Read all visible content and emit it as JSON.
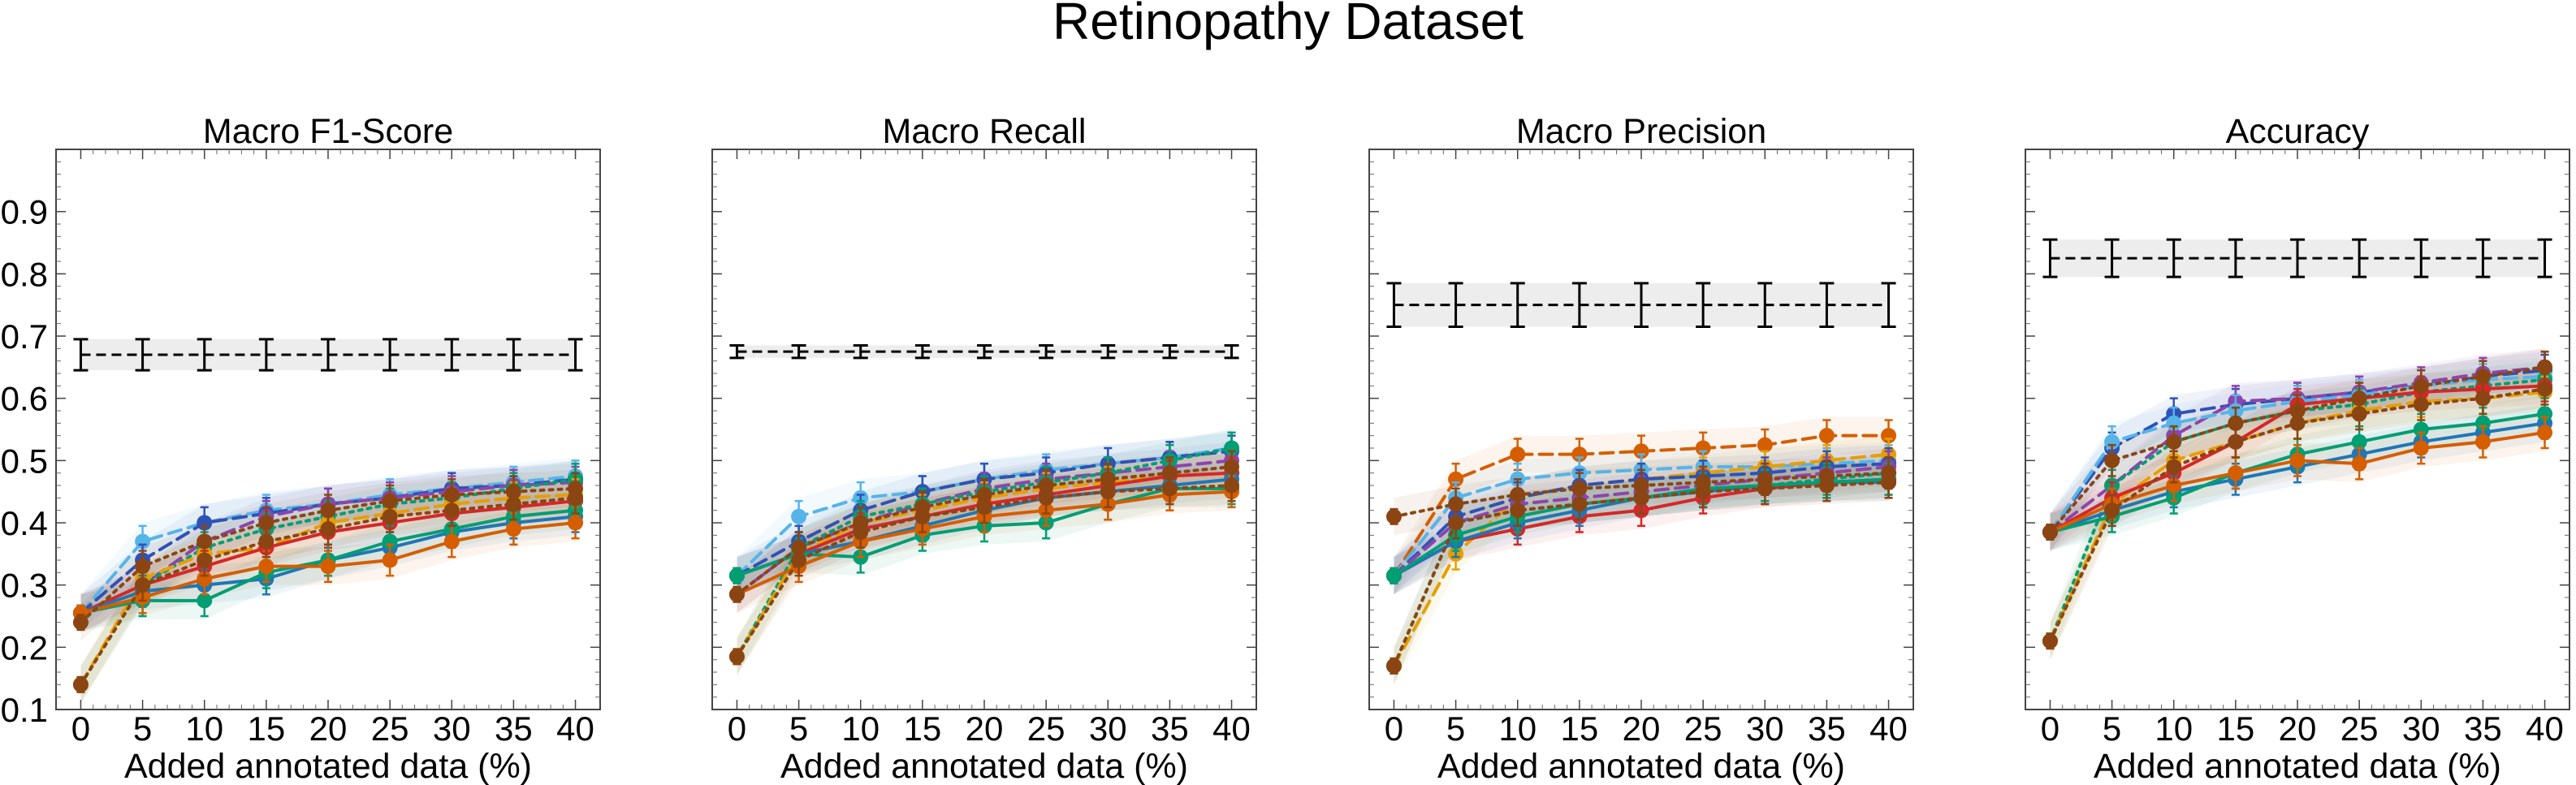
{
  "title": "Retinopathy Dataset",
  "chart_data": [
    {
      "type": "line",
      "title": "Macro F1-Score",
      "xlabel": "Added annotated data (%)",
      "x": [
        0,
        5,
        10,
        15,
        20,
        25,
        30,
        35,
        40
      ],
      "ylim": [
        0.1,
        1.0
      ],
      "yticks": [
        0.1,
        0.2,
        0.3,
        0.4,
        0.5,
        0.6,
        0.7,
        0.8,
        0.9
      ],
      "reference": {
        "value": 0.67,
        "error": 0.025
      },
      "series": [
        {
          "color": "#56b4e9",
          "style": "dashed",
          "values": [
            0.255,
            0.37,
            0.4,
            0.42,
            0.43,
            0.445,
            0.455,
            0.465,
            0.475
          ]
        },
        {
          "color": "#2f52b5",
          "style": "dashed",
          "values": [
            0.255,
            0.34,
            0.4,
            0.415,
            0.43,
            0.44,
            0.455,
            0.46,
            0.47
          ]
        },
        {
          "color": "#8e44ad",
          "style": "dashed",
          "values": [
            0.255,
            0.3,
            0.37,
            0.41,
            0.43,
            0.44,
            0.45,
            0.46,
            0.465
          ]
        },
        {
          "color": "#009e73",
          "style": "dotted",
          "values": [
            0.14,
            0.3,
            0.36,
            0.39,
            0.41,
            0.43,
            0.44,
            0.455,
            0.47
          ]
        },
        {
          "color": "#e69f00",
          "style": "dashed",
          "values": [
            0.14,
            0.31,
            0.35,
            0.36,
            0.4,
            0.415,
            0.43,
            0.44,
            0.445
          ]
        },
        {
          "color": "#d62728",
          "style": "solid",
          "values": [
            0.255,
            0.3,
            0.33,
            0.36,
            0.385,
            0.4,
            0.415,
            0.425,
            0.435
          ]
        },
        {
          "color": "#1f77b4",
          "style": "solid",
          "values": [
            0.255,
            0.29,
            0.3,
            0.31,
            0.34,
            0.36,
            0.385,
            0.4,
            0.41
          ]
        },
        {
          "color": "#009e73",
          "style": "solid",
          "values": [
            0.255,
            0.275,
            0.275,
            0.32,
            0.34,
            0.37,
            0.39,
            0.41,
            0.42
          ]
        },
        {
          "color": "#d55e00",
          "style": "solid",
          "values": [
            0.255,
            0.28,
            0.31,
            0.33,
            0.33,
            0.34,
            0.37,
            0.39,
            0.4
          ]
        },
        {
          "color": "#8b4513",
          "style": "dotted",
          "values": [
            0.24,
            0.33,
            0.37,
            0.4,
            0.42,
            0.435,
            0.445,
            0.45,
            0.455
          ]
        },
        {
          "color": "#8b4513",
          "style": "dotted",
          "values": [
            0.14,
            0.3,
            0.34,
            0.37,
            0.39,
            0.41,
            0.42,
            0.43,
            0.44
          ]
        }
      ]
    },
    {
      "type": "line",
      "title": "Macro Recall",
      "xlabel": "Added annotated data (%)",
      "x": [
        0,
        5,
        10,
        15,
        20,
        25,
        30,
        35,
        40
      ],
      "ylim": [
        0.1,
        1.0
      ],
      "yticks": [],
      "reference": {
        "value": 0.675,
        "error": 0.01
      },
      "series": [
        {
          "color": "#56b4e9",
          "style": "dashed",
          "values": [
            0.315,
            0.41,
            0.44,
            0.45,
            0.47,
            0.485,
            0.495,
            0.505,
            0.52
          ]
        },
        {
          "color": "#2f52b5",
          "style": "dashed",
          "values": [
            0.315,
            0.37,
            0.42,
            0.45,
            0.47,
            0.48,
            0.495,
            0.505,
            0.515
          ]
        },
        {
          "color": "#8e44ad",
          "style": "dashed",
          "values": [
            0.285,
            0.36,
            0.4,
            0.43,
            0.455,
            0.47,
            0.48,
            0.49,
            0.5
          ]
        },
        {
          "color": "#009e73",
          "style": "dotted",
          "values": [
            0.185,
            0.36,
            0.41,
            0.43,
            0.45,
            0.465,
            0.48,
            0.5,
            0.52
          ]
        },
        {
          "color": "#e69f00",
          "style": "dashed",
          "values": [
            0.185,
            0.35,
            0.4,
            0.42,
            0.44,
            0.455,
            0.465,
            0.475,
            0.48
          ]
        },
        {
          "color": "#d62728",
          "style": "solid",
          "values": [
            0.315,
            0.35,
            0.39,
            0.41,
            0.43,
            0.445,
            0.46,
            0.475,
            0.48
          ]
        },
        {
          "color": "#1f77b4",
          "style": "solid",
          "values": [
            0.315,
            0.35,
            0.37,
            0.395,
            0.42,
            0.44,
            0.45,
            0.46,
            0.47
          ]
        },
        {
          "color": "#009e73",
          "style": "solid",
          "values": [
            0.315,
            0.35,
            0.345,
            0.38,
            0.395,
            0.4,
            0.43,
            0.455,
            0.455
          ]
        },
        {
          "color": "#d55e00",
          "style": "solid",
          "values": [
            0.285,
            0.33,
            0.37,
            0.39,
            0.41,
            0.42,
            0.43,
            0.445,
            0.45
          ]
        },
        {
          "color": "#8b4513",
          "style": "dotted",
          "values": [
            0.285,
            0.36,
            0.4,
            0.425,
            0.445,
            0.46,
            0.47,
            0.48,
            0.49
          ]
        },
        {
          "color": "#8b4513",
          "style": "dotted",
          "values": [
            0.185,
            0.34,
            0.385,
            0.41,
            0.425,
            0.44,
            0.45,
            0.455,
            0.46
          ]
        }
      ]
    },
    {
      "type": "line",
      "title": "Macro Precision",
      "xlabel": "Added annotated data (%)",
      "x": [
        0,
        5,
        10,
        15,
        20,
        25,
        30,
        35,
        40
      ],
      "ylim": [
        0.1,
        1.0
      ],
      "yticks": [],
      "reference": {
        "value": 0.75,
        "error": 0.035
      },
      "series": [
        {
          "color": "#d55e00",
          "style": "dashed",
          "values": [
            0.315,
            0.47,
            0.51,
            0.51,
            0.515,
            0.52,
            0.525,
            0.54,
            0.54
          ]
        },
        {
          "color": "#56b4e9",
          "style": "dashed",
          "values": [
            0.315,
            0.44,
            0.47,
            0.48,
            0.485,
            0.49,
            0.49,
            0.495,
            0.5
          ]
        },
        {
          "color": "#e69f00",
          "style": "dashed",
          "values": [
            0.17,
            0.35,
            0.44,
            0.46,
            0.47,
            0.48,
            0.49,
            0.5,
            0.51
          ]
        },
        {
          "color": "#2f52b5",
          "style": "dashed",
          "values": [
            0.315,
            0.41,
            0.44,
            0.46,
            0.47,
            0.475,
            0.48,
            0.49,
            0.495
          ]
        },
        {
          "color": "#8e44ad",
          "style": "dashed",
          "values": [
            0.315,
            0.4,
            0.43,
            0.44,
            0.45,
            0.46,
            0.47,
            0.48,
            0.49
          ]
        },
        {
          "color": "#009e73",
          "style": "dotted",
          "values": [
            0.17,
            0.4,
            0.42,
            0.43,
            0.44,
            0.45,
            0.46,
            0.47,
            0.48
          ]
        },
        {
          "color": "#d62728",
          "style": "solid",
          "values": [
            0.315,
            0.37,
            0.39,
            0.41,
            0.42,
            0.44,
            0.455,
            0.465,
            0.47
          ]
        },
        {
          "color": "#1f77b4",
          "style": "solid",
          "values": [
            0.315,
            0.37,
            0.4,
            0.42,
            0.44,
            0.45,
            0.46,
            0.465,
            0.465
          ]
        },
        {
          "color": "#009e73",
          "style": "solid",
          "values": [
            0.315,
            0.38,
            0.41,
            0.43,
            0.44,
            0.455,
            0.46,
            0.465,
            0.47
          ]
        },
        {
          "color": "#8b4513",
          "style": "dotted",
          "values": [
            0.41,
            0.43,
            0.445,
            0.455,
            0.46,
            0.465,
            0.47,
            0.475,
            0.48
          ]
        },
        {
          "color": "#8b4513",
          "style": "dotted",
          "values": [
            0.17,
            0.4,
            0.42,
            0.43,
            0.44,
            0.45,
            0.455,
            0.46,
            0.465
          ]
        }
      ]
    },
    {
      "type": "line",
      "title": "Accuracy",
      "xlabel": "Added annotated data (%)",
      "x": [
        0,
        5,
        10,
        15,
        20,
        25,
        30,
        35,
        40
      ],
      "ylim": [
        0.1,
        1.0
      ],
      "yticks": [],
      "reference": {
        "value": 0.825,
        "error": 0.03
      },
      "series": [
        {
          "color": "#2f52b5",
          "style": "dashed",
          "values": [
            0.385,
            0.52,
            0.575,
            0.59,
            0.6,
            0.61,
            0.62,
            0.635,
            0.645
          ]
        },
        {
          "color": "#8e44ad",
          "style": "dashed",
          "values": [
            0.385,
            0.46,
            0.54,
            0.595,
            0.6,
            0.61,
            0.625,
            0.64,
            0.65
          ]
        },
        {
          "color": "#56b4e9",
          "style": "dashed",
          "values": [
            0.385,
            0.53,
            0.56,
            0.58,
            0.595,
            0.605,
            0.62,
            0.63,
            0.635
          ]
        },
        {
          "color": "#009e73",
          "style": "dotted",
          "values": [
            0.21,
            0.46,
            0.53,
            0.56,
            0.58,
            0.59,
            0.61,
            0.62,
            0.63
          ]
        },
        {
          "color": "#e69f00",
          "style": "dashed",
          "values": [
            0.21,
            0.43,
            0.5,
            0.53,
            0.56,
            0.58,
            0.595,
            0.6,
            0.61
          ]
        },
        {
          "color": "#d62728",
          "style": "solid",
          "values": [
            0.385,
            0.44,
            0.48,
            0.53,
            0.59,
            0.6,
            0.61,
            0.615,
            0.62
          ]
        },
        {
          "color": "#1f77b4",
          "style": "solid",
          "values": [
            0.385,
            0.42,
            0.45,
            0.47,
            0.49,
            0.51,
            0.53,
            0.545,
            0.56
          ]
        },
        {
          "color": "#009e73",
          "style": "solid",
          "values": [
            0.385,
            0.41,
            0.44,
            0.48,
            0.51,
            0.53,
            0.55,
            0.56,
            0.575
          ]
        },
        {
          "color": "#d55e00",
          "style": "solid",
          "values": [
            0.385,
            0.43,
            0.46,
            0.48,
            0.5,
            0.495,
            0.52,
            0.53,
            0.545
          ]
        },
        {
          "color": "#8b4513",
          "style": "dotted",
          "values": [
            0.385,
            0.5,
            0.53,
            0.56,
            0.58,
            0.6,
            0.62,
            0.635,
            0.65
          ]
        },
        {
          "color": "#8b4513",
          "style": "dotted",
          "values": [
            0.21,
            0.42,
            0.49,
            0.53,
            0.56,
            0.575,
            0.59,
            0.6,
            0.615
          ]
        }
      ]
    }
  ]
}
